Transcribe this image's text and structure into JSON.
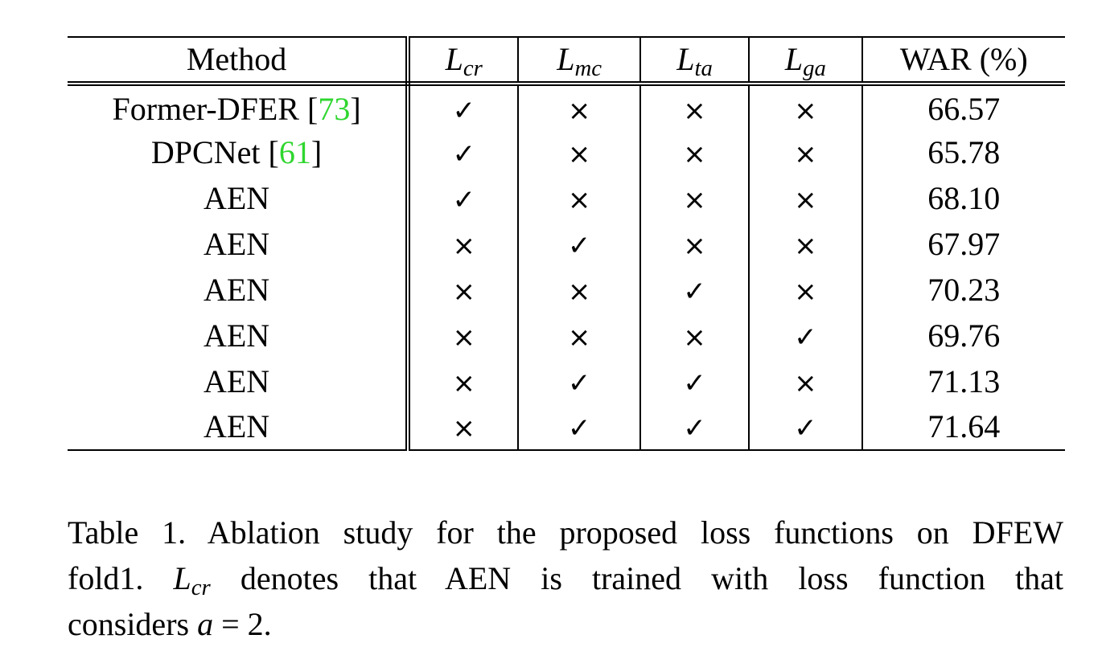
{
  "table": {
    "headers": {
      "method": "Method",
      "lcr": {
        "base": "L",
        "sub": "cr"
      },
      "lmc": {
        "base": "L",
        "sub": "mc"
      },
      "lta": {
        "base": "L",
        "sub": "ta"
      },
      "lga": {
        "base": "L",
        "sub": "ga"
      },
      "war": "WAR (%)"
    },
    "rows": [
      {
        "method": "Former-DFER ",
        "cite": "73",
        "lcr": "✓",
        "lmc": "×",
        "lta": "×",
        "lga": "×",
        "war": "66.57"
      },
      {
        "method": "DPCNet ",
        "cite": "61",
        "lcr": "✓",
        "lmc": "×",
        "lta": "×",
        "lga": "×",
        "war": "65.78"
      },
      {
        "method": "AEN",
        "cite": "",
        "lcr": "✓",
        "lmc": "×",
        "lta": "×",
        "lga": "×",
        "war": "68.10"
      },
      {
        "method": "AEN",
        "cite": "",
        "lcr": "×",
        "lmc": "✓",
        "lta": "×",
        "lga": "×",
        "war": "67.97"
      },
      {
        "method": "AEN",
        "cite": "",
        "lcr": "×",
        "lmc": "×",
        "lta": "✓",
        "lga": "×",
        "war": "70.23"
      },
      {
        "method": "AEN",
        "cite": "",
        "lcr": "×",
        "lmc": "×",
        "lta": "×",
        "lga": "✓",
        "war": "69.76"
      },
      {
        "method": "AEN",
        "cite": "",
        "lcr": "×",
        "lmc": "✓",
        "lta": "✓",
        "lga": "×",
        "war": "71.13"
      },
      {
        "method": "AEN",
        "cite": "",
        "lcr": "×",
        "lmc": "✓",
        "lta": "✓",
        "lga": "✓",
        "war": "71.64"
      }
    ]
  },
  "caption": {
    "line1": "Table 1. Ablation study for the proposed loss functions on DFEW",
    "line2_prefix": "fold1. ",
    "line2_math_base": "L",
    "line2_math_sub": "cr",
    "line2_suffix": " denotes that AEN is trained with loss function that",
    "line3_prefix": "considers ",
    "line3_math": "a",
    "line3_suffix": " = 2."
  },
  "colors": {
    "citation": "#2fd62f",
    "text": "#000000"
  }
}
